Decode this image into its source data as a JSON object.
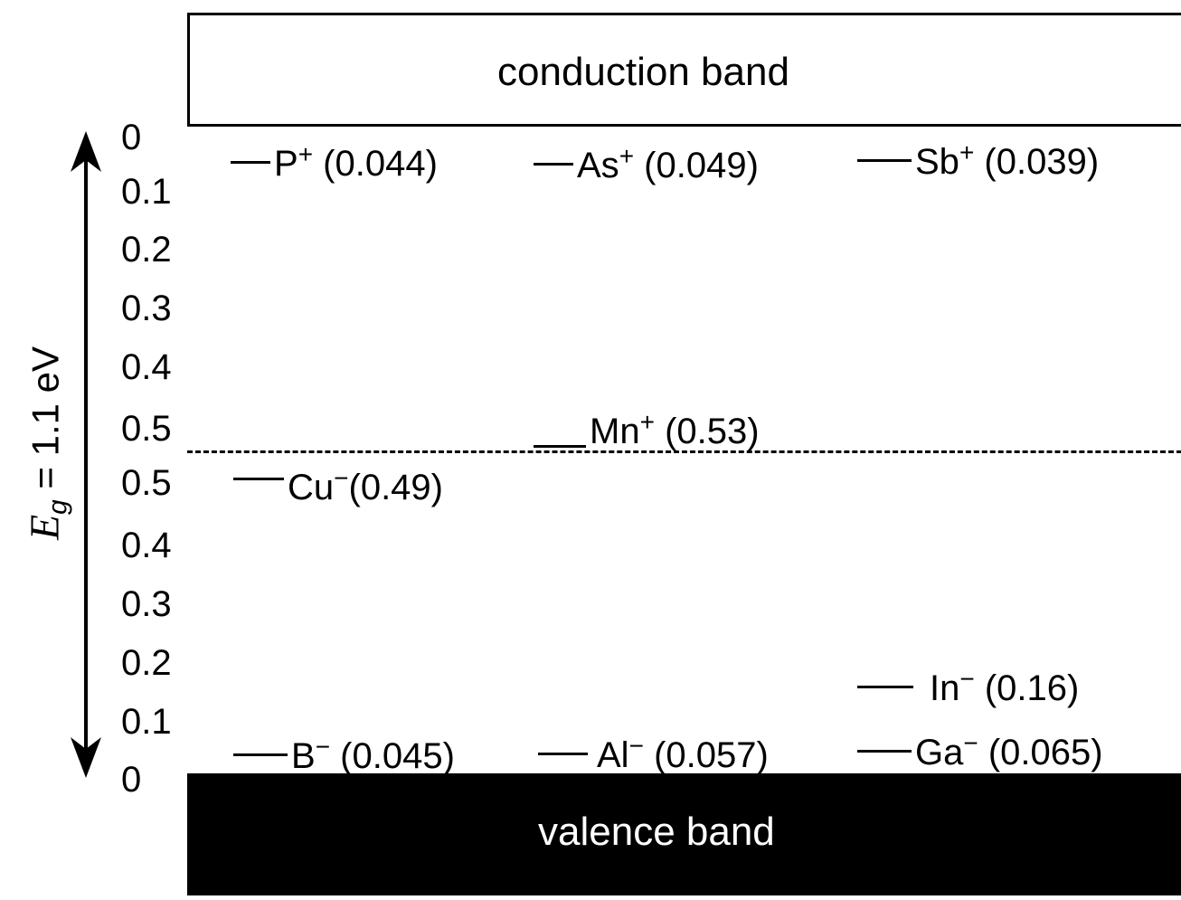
{
  "bands": {
    "conduction": "conduction band",
    "valence": "valence band"
  },
  "axis": {
    "gap_symbol": "E",
    "gap_subscript": "g",
    "gap_value": " = 1.1 eV",
    "upper_ticks": [
      "0",
      "0.1",
      "0.2",
      "0.3",
      "0.4",
      "0.5"
    ],
    "lower_ticks": [
      "0.5",
      "0.4",
      "0.3",
      "0.2",
      "0.1",
      "0"
    ]
  },
  "levels": {
    "donors": [
      {
        "ion": "P",
        "charge": "+",
        "energy": "(0.044)"
      },
      {
        "ion": "As",
        "charge": "+",
        "energy": "(0.049)"
      },
      {
        "ion": "Sb",
        "charge": "+",
        "energy": "(0.039)"
      },
      {
        "ion": "Mn",
        "charge": "+",
        "energy": "(0.53)"
      }
    ],
    "acceptors": [
      {
        "ion": "Cu",
        "charge": "−",
        "energy": "(0.49)"
      },
      {
        "ion": "In",
        "charge": "−",
        "energy": "(0.16)"
      },
      {
        "ion": "B",
        "charge": "−",
        "energy": "(0.045)"
      },
      {
        "ion": "Al",
        "charge": "−",
        "energy": "(0.057)"
      },
      {
        "ion": "Ga",
        "charge": "−",
        "energy": "(0.065)"
      }
    ]
  }
}
